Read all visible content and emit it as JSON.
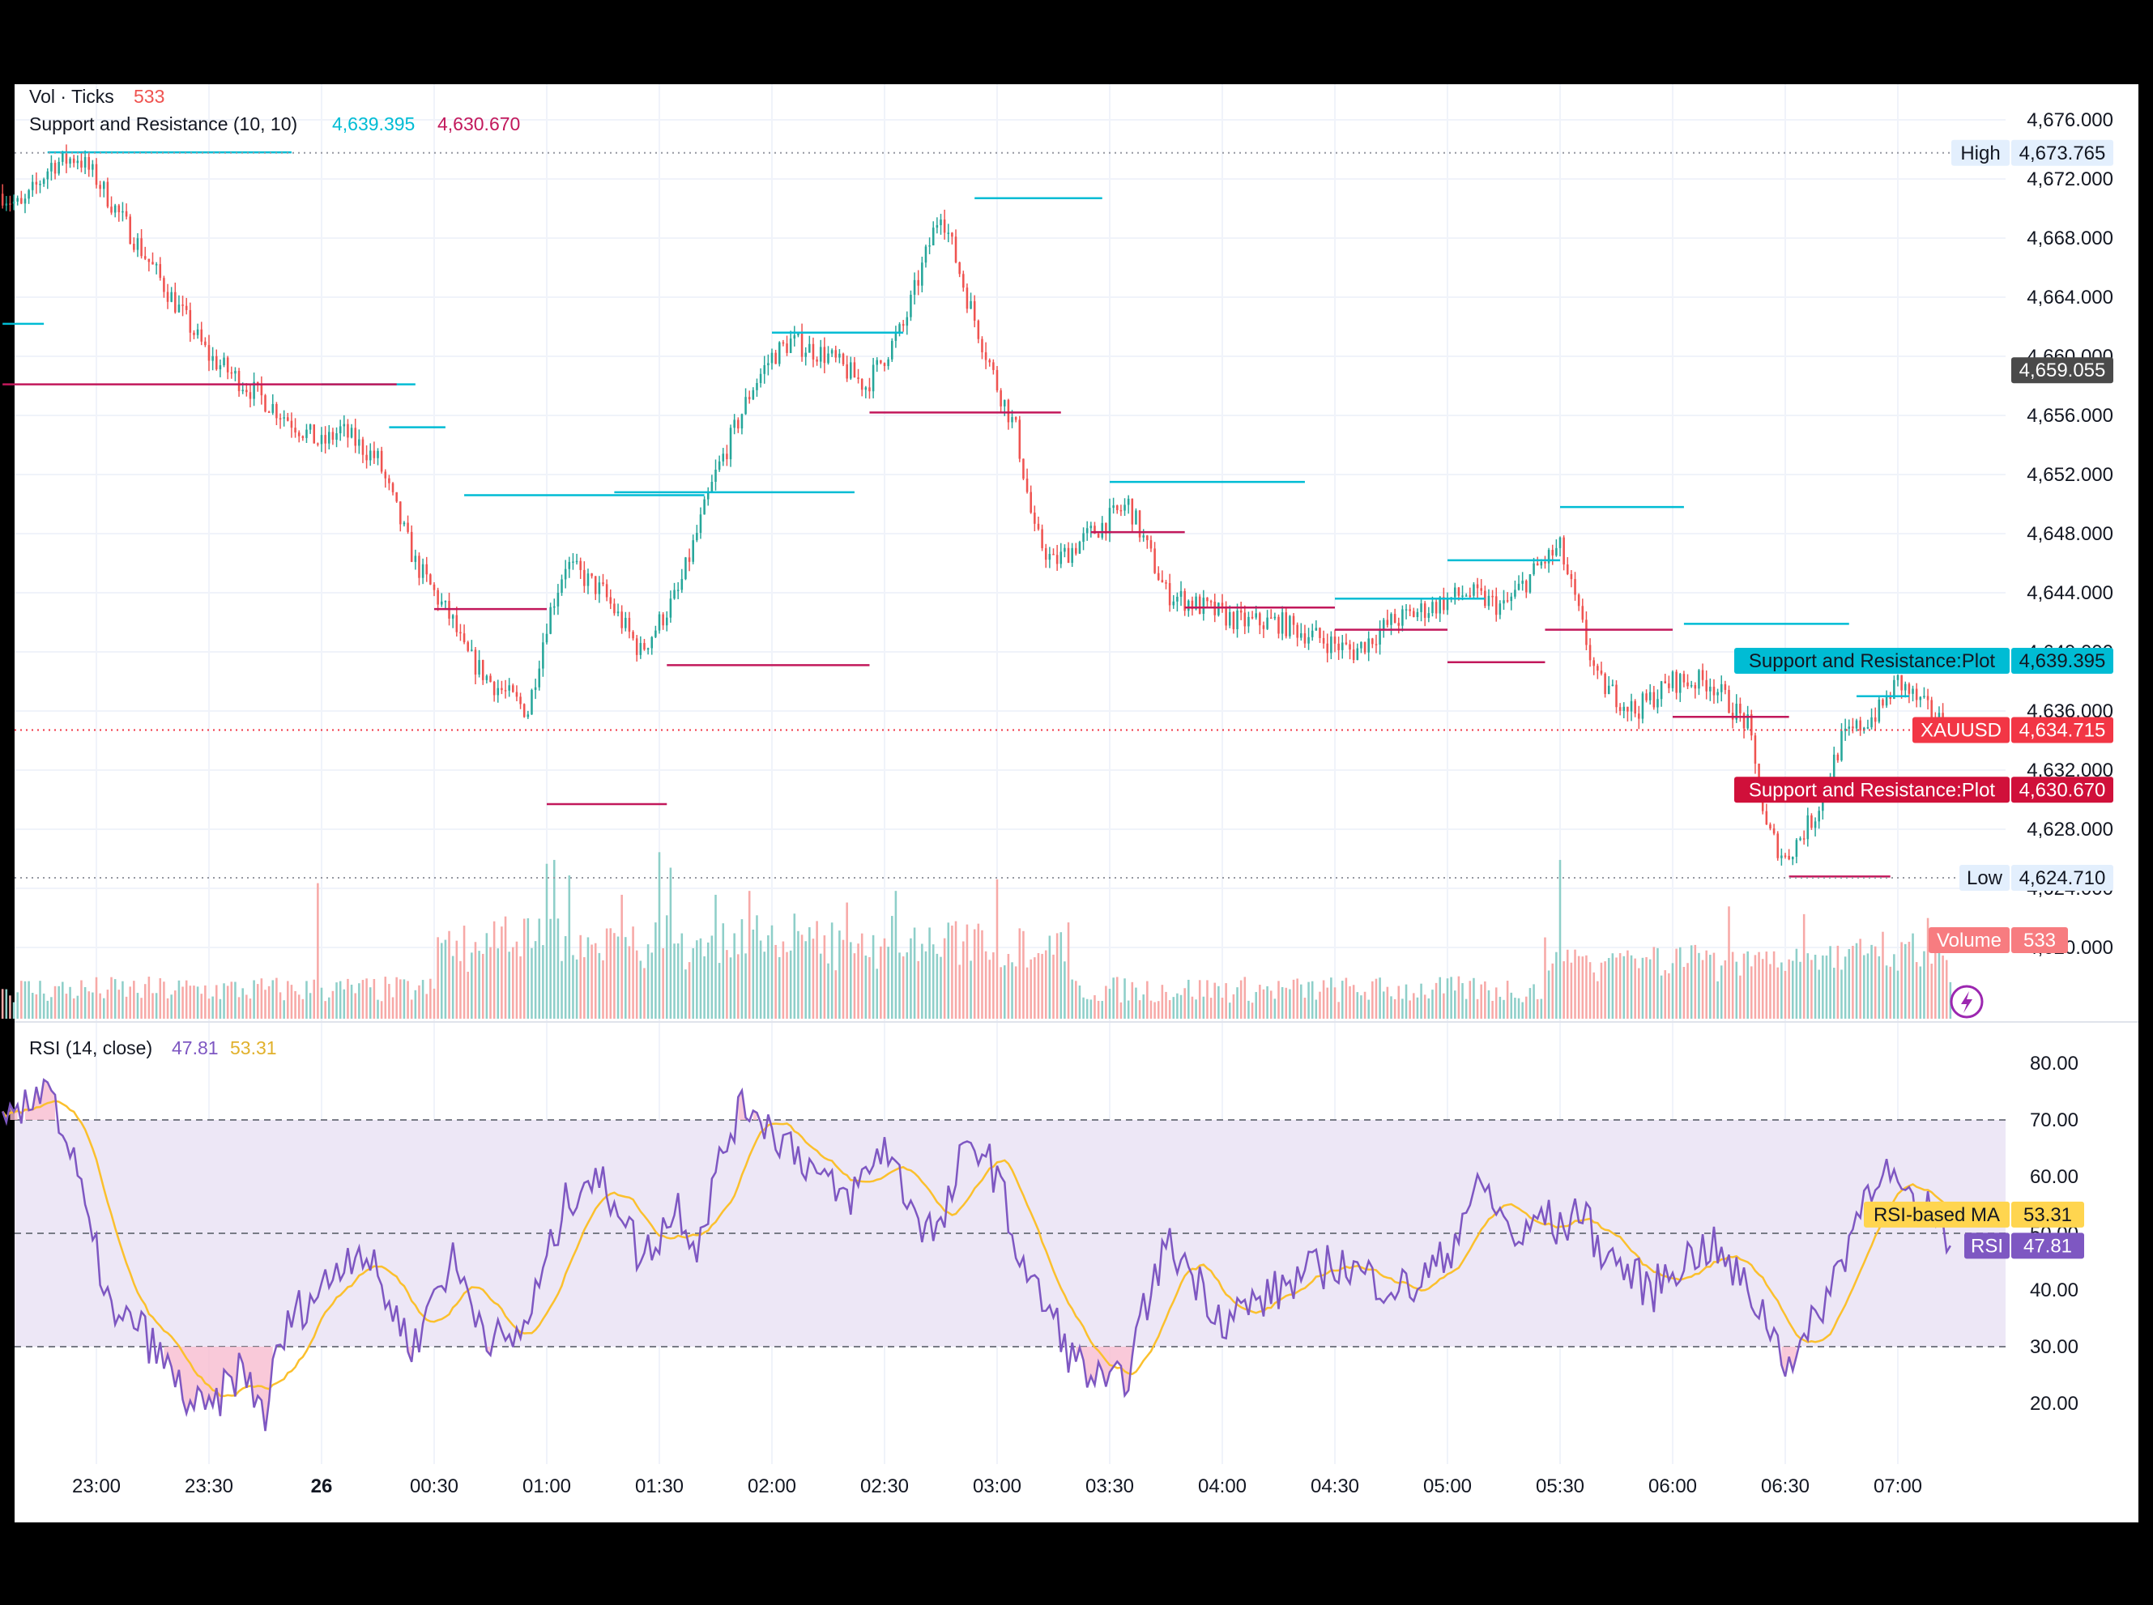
{
  "chart_data": [
    {
      "type": "candlestick",
      "symbol": "XAUUSD",
      "legend": {
        "vol_label": "Vol · Ticks",
        "vol_value": "533",
        "sr_label": "Support and Resistance (10, 10)",
        "sr_resistance": "4,639.395",
        "sr_support": "4,630.670"
      },
      "y_ticks": [
        "4,676.000",
        "4,672.000",
        "4,668.000",
        "4,664.000",
        "4,660.000",
        "4,656.000",
        "4,652.000",
        "4,648.000",
        "4,644.000",
        "4,640.000",
        "4,636.000",
        "4,632.000",
        "4,628.000",
        "4,624.000",
        "4,620.000"
      ],
      "y_values": [
        4676,
        4672,
        4668,
        4664,
        4660,
        4656,
        4652,
        4648,
        4644,
        4640,
        4636,
        4632,
        4628,
        4624,
        4620
      ],
      "ylim": [
        4619,
        4680
      ],
      "x_ticks": [
        "23:00",
        "23:30",
        "26",
        "00:30",
        "01:00",
        "01:30",
        "02:00",
        "02:30",
        "03:00",
        "03:30",
        "04:00",
        "04:30",
        "05:00",
        "05:30",
        "06:00",
        "06:30",
        "07:00"
      ],
      "x_tick_time_minutes": [
        1380,
        1410,
        1440,
        1470,
        1500,
        1530,
        1560,
        1590,
        1620,
        1650,
        1680,
        1710,
        1740,
        1770,
        1800,
        1830,
        1860
      ],
      "price_anchors": {
        "time_minutes": [
          1355,
          1360,
          1368,
          1375,
          1380,
          1390,
          1400,
          1410,
          1420,
          1430,
          1440,
          1445,
          1455,
          1465,
          1475,
          1478,
          1485,
          1495,
          1500,
          1505,
          1515,
          1525,
          1535,
          1545,
          1555,
          1560,
          1565,
          1575,
          1585,
          1595,
          1605,
          1612,
          1620,
          1625,
          1630,
          1635,
          1645,
          1655,
          1665,
          1675,
          1685,
          1695,
          1705,
          1715,
          1725,
          1735,
          1745,
          1755,
          1765,
          1770,
          1780,
          1790,
          1800,
          1810,
          1820,
          1825,
          1830,
          1838,
          1845,
          1855,
          1860,
          1868,
          1874
        ],
        "price": [
          4671,
          4670,
          4673,
          4673.5,
          4672,
          4668,
          4664,
          4660,
          4658,
          4656,
          4654,
          4655,
          4653,
          4646,
          4642,
          4640,
          4638,
          4636,
          4642,
          4646,
          4644,
          4640,
          4644,
          4652,
          4658,
          4660,
          4661,
          4660,
          4658,
          4662,
          4670,
          4664,
          4658,
          4655,
          4648,
          4646,
          4648,
          4650,
          4644,
          4643,
          4642,
          4642,
          4641,
          4640,
          4642,
          4643,
          4644,
          4643,
          4646,
          4647,
          4638,
          4636,
          4638,
          4638,
          4635,
          4628,
          4626,
          4629,
          4634,
          4636,
          4638,
          4636,
          4634.7
        ]
      },
      "markers": {
        "high_label": "High",
        "high_value": "4,673.765",
        "high_price": 4673.765,
        "last_price_label": "4,659.055",
        "last_price": 4659.055,
        "resistance_label": "Support and Resistance:Plot",
        "resistance_value": "4,639.395",
        "resistance_price": 4639.395,
        "symbol_label": "XAUUSD",
        "symbol_value": "4,634.715",
        "symbol_price": 4634.715,
        "support_label": "Support and Resistance:Plot",
        "support_value": "4,630.670",
        "support_price": 4630.67,
        "low_label": "Low",
        "low_value": "4,624.710",
        "low_price": 4624.71,
        "volume_label": "Volume",
        "volume_value": "533"
      },
      "resistance_levels": [
        {
          "t0": 1367,
          "t1": 1432,
          "p": 4673.8
        },
        {
          "t0": 1355,
          "t1": 1366,
          "p": 4662.2
        },
        {
          "t0": 1440,
          "t1": 1465,
          "p": 4658.1
        },
        {
          "t0": 1458,
          "t1": 1473,
          "p": 4655.2
        },
        {
          "t0": 1478,
          "t1": 1542,
          "p": 4650.6
        },
        {
          "t0": 1518,
          "t1": 1582,
          "p": 4650.8
        },
        {
          "t0": 1560,
          "t1": 1595,
          "p": 4661.6
        },
        {
          "t0": 1614,
          "t1": 1648,
          "p": 4670.7
        },
        {
          "t0": 1650,
          "t1": 1702,
          "p": 4651.5
        },
        {
          "t0": 1710,
          "t1": 1750,
          "p": 4643.6
        },
        {
          "t0": 1740,
          "t1": 1770,
          "p": 4646.2
        },
        {
          "t0": 1770,
          "t1": 1803,
          "p": 4649.8
        },
        {
          "t0": 1803,
          "t1": 1847,
          "p": 4641.9
        },
        {
          "t0": 1849,
          "t1": 1863,
          "p": 4637.0
        }
      ],
      "support_levels": [
        {
          "t0": 1355,
          "t1": 1460,
          "p": 4658.1
        },
        {
          "t0": 1470,
          "t1": 1500,
          "p": 4642.9
        },
        {
          "t0": 1500,
          "t1": 1532,
          "p": 4629.7
        },
        {
          "t0": 1532,
          "t1": 1586,
          "p": 4639.1
        },
        {
          "t0": 1586,
          "t1": 1637,
          "p": 4656.2
        },
        {
          "t0": 1645,
          "t1": 1670,
          "p": 4648.1
        },
        {
          "t0": 1670,
          "t1": 1710,
          "p": 4643.0
        },
        {
          "t0": 1710,
          "t1": 1740,
          "p": 4641.5
        },
        {
          "t0": 1740,
          "t1": 1766,
          "p": 4639.3
        },
        {
          "t0": 1766,
          "t1": 1800,
          "p": 4641.5
        },
        {
          "t0": 1800,
          "t1": 1831,
          "p": 4635.6
        },
        {
          "t0": 1831,
          "t1": 1858,
          "p": 4624.8
        }
      ],
      "volume": {
        "ylim": [
          0,
          230
        ],
        "spikes": [
          {
            "t": 1439,
            "v": 175
          },
          {
            "t": 1500,
            "v": 200
          },
          {
            "t": 1502,
            "v": 205
          },
          {
            "t": 1506,
            "v": 185
          },
          {
            "t": 1520,
            "v": 160
          },
          {
            "t": 1530,
            "v": 215
          },
          {
            "t": 1533,
            "v": 195
          },
          {
            "t": 1545,
            "v": 160
          },
          {
            "t": 1554,
            "v": 165
          },
          {
            "t": 1580,
            "v": 150
          },
          {
            "t": 1593,
            "v": 165
          },
          {
            "t": 1620,
            "v": 180
          },
          {
            "t": 1770,
            "v": 205
          },
          {
            "t": 1815,
            "v": 145
          },
          {
            "t": 1835,
            "v": 135
          },
          {
            "t": 1868,
            "v": 130
          }
        ]
      },
      "colors": {
        "up": "#26a69a",
        "down": "#ef5350",
        "resistance": "#00bcd4",
        "support": "#c2185b",
        "volume_up": "#8ecfc9",
        "volume_down": "#f7a9a7",
        "dark_label": "#4a4a4a",
        "red_label": "#f23645",
        "teal_label": "#00bcd4",
        "support_label": "#d0103a"
      }
    },
    {
      "type": "line",
      "title": "RSI (14, close)",
      "rsi_value": "47.81",
      "ma_value": "53.31",
      "y_ticks": [
        "80.00",
        "70.00",
        "60.00",
        "50.00",
        "40.00",
        "30.00",
        "20.00"
      ],
      "y_values": [
        80,
        70,
        60,
        50,
        40,
        30,
        20
      ],
      "ylim": [
        9.5,
        82.5
      ],
      "bands": {
        "upper": 70,
        "middle": 50,
        "lower": 30
      },
      "rsi_anchors": {
        "time_minutes": [
          1355,
          1362,
          1367,
          1370,
          1375,
          1378,
          1382,
          1385,
          1390,
          1395,
          1400,
          1405,
          1410,
          1414,
          1418,
          1422,
          1425,
          1428,
          1432,
          1436,
          1440,
          1445,
          1450,
          1455,
          1460,
          1465,
          1470,
          1475,
          1480,
          1485,
          1490,
          1495,
          1500,
          1505,
          1510,
          1515,
          1520,
          1525,
          1530,
          1535,
          1540,
          1545,
          1550,
          1555,
          1560,
          1565,
          1570,
          1575,
          1580,
          1585,
          1590,
          1595,
          1600,
          1605,
          1610,
          1615,
          1620,
          1625,
          1630,
          1635,
          1640,
          1645,
          1650,
          1655,
          1660,
          1665,
          1670,
          1675,
          1680,
          1690,
          1700,
          1710,
          1720,
          1730,
          1740,
          1745,
          1750,
          1755,
          1760,
          1765,
          1770,
          1775,
          1780,
          1785,
          1790,
          1795,
          1800,
          1805,
          1810,
          1815,
          1820,
          1825,
          1830,
          1835,
          1840,
          1845,
          1850,
          1855,
          1860,
          1865,
          1870,
          1874
        ],
        "value": [
          68,
          72,
          79,
          70,
          60,
          50,
          42,
          33,
          35,
          30,
          25,
          20,
          18,
          22,
          26,
          22,
          18,
          28,
          35,
          38,
          40,
          45,
          48,
          42,
          35,
          30,
          40,
          45,
          38,
          32,
          30,
          35,
          45,
          55,
          60,
          58,
          55,
          45,
          50,
          55,
          48,
          60,
          70,
          73,
          68,
          66,
          62,
          58,
          56,
          60,
          66,
          58,
          52,
          50,
          62,
          66,
          60,
          48,
          40,
          35,
          28,
          25,
          22,
          26,
          38,
          48,
          45,
          40,
          35,
          38,
          42,
          45,
          42,
          40,
          46,
          55,
          58,
          52,
          48,
          54,
          50,
          55,
          48,
          45,
          42,
          40,
          44,
          46,
          48,
          44,
          40,
          35,
          28,
          30,
          38,
          45,
          55,
          62,
          58,
          52,
          55,
          47.81
        ]
      },
      "colors": {
        "rsi": "#7e57c2",
        "ma": "#fbc02d",
        "band_fill": "#ede7f6",
        "overbought_fill": "#f8bbd0",
        "ma_label": "#ffd54f",
        "rsi_label": "#7e57c2"
      },
      "rsi_tag_label": "RSI",
      "ma_tag_label": "RSI-based MA"
    }
  ]
}
